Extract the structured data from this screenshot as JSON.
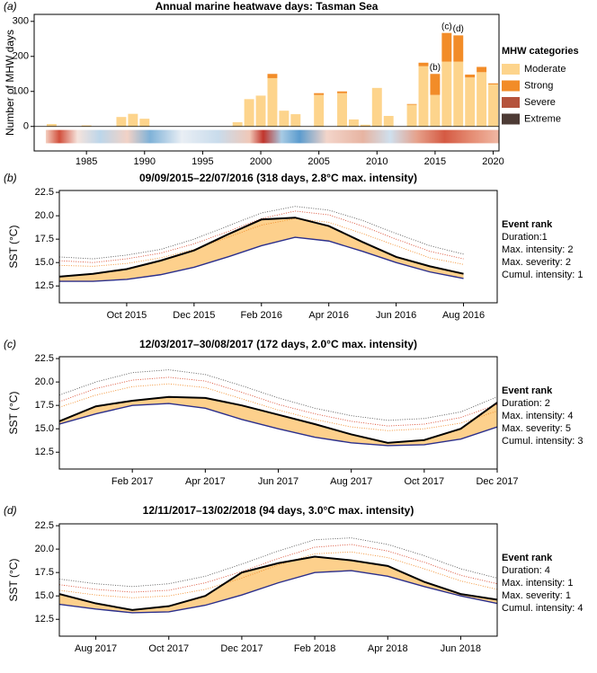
{
  "chart_data": [
    {
      "type": "bar",
      "label": "(a)",
      "title": "Annual marine heatwave days: Tasman Sea",
      "ylabel": "Number of MHW days",
      "x": [
        1982,
        1983,
        1984,
        1985,
        1986,
        1987,
        1988,
        1989,
        1990,
        1991,
        1992,
        1993,
        1994,
        1995,
        1996,
        1997,
        1998,
        1999,
        2000,
        2001,
        2002,
        2003,
        2004,
        2005,
        2006,
        2007,
        2008,
        2009,
        2010,
        2011,
        2012,
        2013,
        2014,
        2015,
        2016,
        2017,
        2018,
        2019,
        2020
      ],
      "series": [
        {
          "name": "Moderate",
          "color": "#fdd48c",
          "values": [
            7,
            0,
            0,
            3,
            0,
            0,
            27,
            36,
            22,
            0,
            0,
            0,
            0,
            0,
            0,
            0,
            12,
            78,
            88,
            138,
            45,
            35,
            0,
            90,
            0,
            95,
            20,
            5,
            110,
            30,
            0,
            62,
            172,
            90,
            185,
            185,
            140,
            155,
            120
          ]
        },
        {
          "name": "Strong",
          "color": "#f28c28",
          "values": [
            0,
            0,
            0,
            0,
            0,
            0,
            0,
            0,
            0,
            0,
            0,
            0,
            0,
            0,
            0,
            0,
            0,
            0,
            0,
            12,
            0,
            0,
            0,
            5,
            0,
            5,
            0,
            0,
            0,
            0,
            0,
            2,
            10,
            60,
            82,
            75,
            8,
            15,
            3
          ]
        },
        {
          "name": "Severe",
          "color": "#b5533c",
          "values": [
            0,
            0,
            0,
            0,
            0,
            0,
            0,
            0,
            0,
            0,
            0,
            0,
            0,
            0,
            0,
            0,
            0,
            0,
            0,
            0,
            0,
            0,
            0,
            0,
            0,
            0,
            0,
            0,
            0,
            0,
            0,
            0,
            0,
            0,
            0,
            0,
            0,
            0,
            0
          ]
        },
        {
          "name": "Extreme",
          "color": "#4d3b35",
          "values": [
            0,
            0,
            0,
            0,
            0,
            0,
            0,
            0,
            0,
            0,
            0,
            0,
            0,
            0,
            0,
            0,
            0,
            0,
            0,
            0,
            0,
            0,
            0,
            0,
            0,
            0,
            0,
            0,
            0,
            0,
            0,
            0,
            0,
            0,
            0,
            0,
            0,
            0,
            0
          ]
        }
      ],
      "xlim": [
        1981,
        2021
      ],
      "xticks": [
        1985,
        1990,
        1995,
        2000,
        2005,
        2010,
        2015,
        2020
      ],
      "ylim": [
        -70,
        320
      ],
      "yticks": [
        0,
        100,
        200,
        300
      ],
      "legend_title": "MHW categories",
      "annotations": [
        {
          "text": "(b)",
          "x": 2015,
          "y": 150
        },
        {
          "text": "(c)",
          "x": 2016,
          "y": 267
        },
        {
          "text": "(d)",
          "x": 2017,
          "y": 260
        }
      ]
    },
    {
      "type": "line",
      "label": "(b)",
      "title": "09/09/2015–22/07/2016 (318 days, 2.8°C max. intensity)",
      "ylabel": "SST (°C)",
      "x": [
        "2015-08",
        "2015-09",
        "2015-10",
        "2015-11",
        "2015-12",
        "2016-01",
        "2016-02",
        "2016-03",
        "2016-04",
        "2016-05",
        "2016-06",
        "2016-07",
        "2016-08"
      ],
      "series": [
        {
          "color": "#000000",
          "values": [
            13.5,
            13.8,
            14.3,
            15.2,
            16.3,
            18.0,
            19.6,
            19.8,
            18.9,
            17.2,
            15.6,
            14.6,
            13.8
          ]
        },
        {
          "color": "#2b2f8c",
          "values": [
            13.0,
            13.0,
            13.2,
            13.7,
            14.5,
            15.6,
            16.8,
            17.7,
            17.3,
            16.2,
            15.0,
            14.0,
            13.3
          ]
        },
        {
          "color": "#f28c28",
          "style": "dotted",
          "values": [
            14.7,
            14.6,
            14.9,
            15.5,
            16.4,
            17.7,
            19.0,
            19.7,
            19.3,
            18.1,
            16.8,
            15.5,
            14.8
          ]
        },
        {
          "color": "#d9472b",
          "style": "dotted",
          "values": [
            15.2,
            15.0,
            15.4,
            16.0,
            17.0,
            18.3,
            19.7,
            20.5,
            20.1,
            18.9,
            17.5,
            16.2,
            15.4
          ]
        },
        {
          "color": "#555555",
          "style": "dotted",
          "values": [
            15.6,
            15.4,
            15.8,
            16.4,
            17.5,
            18.9,
            20.3,
            21.0,
            20.6,
            19.5,
            18.1,
            16.8,
            15.9
          ]
        }
      ],
      "shade": "#fdc878",
      "xlim": [
        "2015-08",
        "2016-09"
      ],
      "xticks": [
        {
          "value": "2015-10",
          "label": "Oct 2015"
        },
        {
          "value": "2015-12",
          "label": "Dec 2015"
        },
        {
          "value": "2016-02",
          "label": "Feb 2016"
        },
        {
          "value": "2016-04",
          "label": "Apr 2016"
        },
        {
          "value": "2016-06",
          "label": "Jun 2016"
        },
        {
          "value": "2016-08",
          "label": "Aug 2016"
        }
      ],
      "ylim": [
        10.7,
        22.7
      ],
      "yticks": [
        12.5,
        {
          "value": 15,
          "label": "15.0"
        },
        17.5,
        {
          "value": 20,
          "label": "20.0"
        },
        22.5
      ],
      "rank_title": "Event rank",
      "rank_lines": [
        "Duration:1",
        "Max. intensity: 2",
        "Max. severity: 2",
        "Cumul. intensity: 1"
      ]
    },
    {
      "type": "line",
      "label": "(c)",
      "title": "12/03/2017–30/08/2017 (172 days, 2.0°C max. intensity)",
      "ylabel": "SST (°C)",
      "x": [
        "2016-12",
        "2017-01",
        "2017-02",
        "2017-03",
        "2017-04",
        "2017-05",
        "2017-06",
        "2017-07",
        "2017-08",
        "2017-09",
        "2017-10",
        "2017-11",
        "2017-12"
      ],
      "series": [
        {
          "color": "#000000",
          "values": [
            15.8,
            17.4,
            18.0,
            18.4,
            18.3,
            17.5,
            16.5,
            15.5,
            14.4,
            13.5,
            13.8,
            15.0,
            17.8
          ]
        },
        {
          "color": "#2b2f8c",
          "values": [
            15.5,
            16.6,
            17.5,
            17.7,
            17.2,
            16.0,
            15.0,
            14.1,
            13.5,
            13.2,
            13.3,
            13.9,
            15.2
          ]
        },
        {
          "color": "#f28c28",
          "style": "dotted",
          "values": [
            17.3,
            18.6,
            19.5,
            19.8,
            19.4,
            18.2,
            17.0,
            16.0,
            15.2,
            14.8,
            15.0,
            15.6,
            16.9
          ]
        },
        {
          "color": "#d9472b",
          "style": "dotted",
          "values": [
            17.9,
            19.3,
            20.2,
            20.5,
            20.1,
            18.9,
            17.6,
            16.6,
            15.8,
            15.3,
            15.5,
            16.2,
            17.6
          ]
        },
        {
          "color": "#555555",
          "style": "dotted",
          "values": [
            18.6,
            20.0,
            21.0,
            21.3,
            20.8,
            19.6,
            18.3,
            17.2,
            16.4,
            15.9,
            16.1,
            16.8,
            18.4
          ]
        }
      ],
      "shade": "#fdc878",
      "xlim": [
        "2016-12",
        "2017-12"
      ],
      "xticks": [
        {
          "value": "2017-02",
          "label": "Feb 2017"
        },
        {
          "value": "2017-04",
          "label": "Apr 2017"
        },
        {
          "value": "2017-06",
          "label": "Jun 2017"
        },
        {
          "value": "2017-08",
          "label": "Aug 2017"
        },
        {
          "value": "2017-10",
          "label": "Oct 2017"
        },
        {
          "value": "2017-12",
          "label": "Dec 2017"
        }
      ],
      "ylim": [
        10.7,
        22.7
      ],
      "yticks": [
        12.5,
        {
          "value": 15,
          "label": "15.0"
        },
        17.5,
        {
          "value": 20,
          "label": "20.0"
        },
        22.5
      ],
      "rank_title": "Event rank",
      "rank_lines": [
        "Duration: 2",
        "Max. intensity: 4",
        "Max. severity: 5",
        "Cumul. intensity: 3"
      ]
    },
    {
      "type": "line",
      "label": "(d)",
      "title": "12/11/2017–13/02/2018 (94 days, 3.0°C max. intensity)",
      "ylabel": "SST (°C)",
      "x": [
        "2017-07",
        "2017-08",
        "2017-09",
        "2017-10",
        "2017-11",
        "2017-12",
        "2018-01",
        "2018-02",
        "2018-03",
        "2018-04",
        "2018-05",
        "2018-06",
        "2018-07"
      ],
      "series": [
        {
          "color": "#000000",
          "values": [
            15.2,
            14.2,
            13.5,
            13.9,
            15.0,
            17.5,
            18.5,
            19.2,
            18.8,
            18.2,
            16.5,
            15.2,
            14.6
          ]
        },
        {
          "color": "#2b2f8c",
          "values": [
            14.1,
            13.6,
            13.2,
            13.3,
            14.0,
            15.1,
            16.4,
            17.5,
            17.7,
            17.1,
            16.0,
            15.0,
            14.2
          ]
        },
        {
          "color": "#f28c28",
          "style": "dotted",
          "values": [
            15.6,
            15.1,
            14.8,
            15.0,
            15.7,
            16.9,
            18.3,
            19.5,
            19.7,
            19.1,
            17.9,
            16.6,
            15.7
          ]
        },
        {
          "color": "#d9472b",
          "style": "dotted",
          "values": [
            16.2,
            15.7,
            15.4,
            15.6,
            16.4,
            17.6,
            19.0,
            20.2,
            20.5,
            19.8,
            18.6,
            17.2,
            16.3
          ]
        },
        {
          "color": "#555555",
          "style": "dotted",
          "values": [
            16.8,
            16.3,
            16.0,
            16.3,
            17.1,
            18.4,
            19.8,
            21.0,
            21.2,
            20.5,
            19.3,
            17.9,
            16.9
          ]
        }
      ],
      "shade": "#fdc878",
      "xlim": [
        "2017-07",
        "2018-07"
      ],
      "xticks": [
        {
          "value": "2017-08",
          "label": "Aug 2017"
        },
        {
          "value": "2017-10",
          "label": "Oct 2017"
        },
        {
          "value": "2017-12",
          "label": "Dec 2017"
        },
        {
          "value": "2018-02",
          "label": "Feb 2018"
        },
        {
          "value": "2018-04",
          "label": "Apr 2018"
        },
        {
          "value": "2018-06",
          "label": "Jun 2018"
        }
      ],
      "ylim": [
        10.7,
        22.7
      ],
      "yticks": [
        12.5,
        {
          "value": 15,
          "label": "15.0"
        },
        17.5,
        {
          "value": 20,
          "label": "20.0"
        },
        22.5
      ],
      "rank_title": "Event rank",
      "rank_lines": [
        "Duration: 4",
        "Max. intensity: 1",
        "Max. severity: 1",
        "Cumul. intensity: 4"
      ]
    }
  ]
}
